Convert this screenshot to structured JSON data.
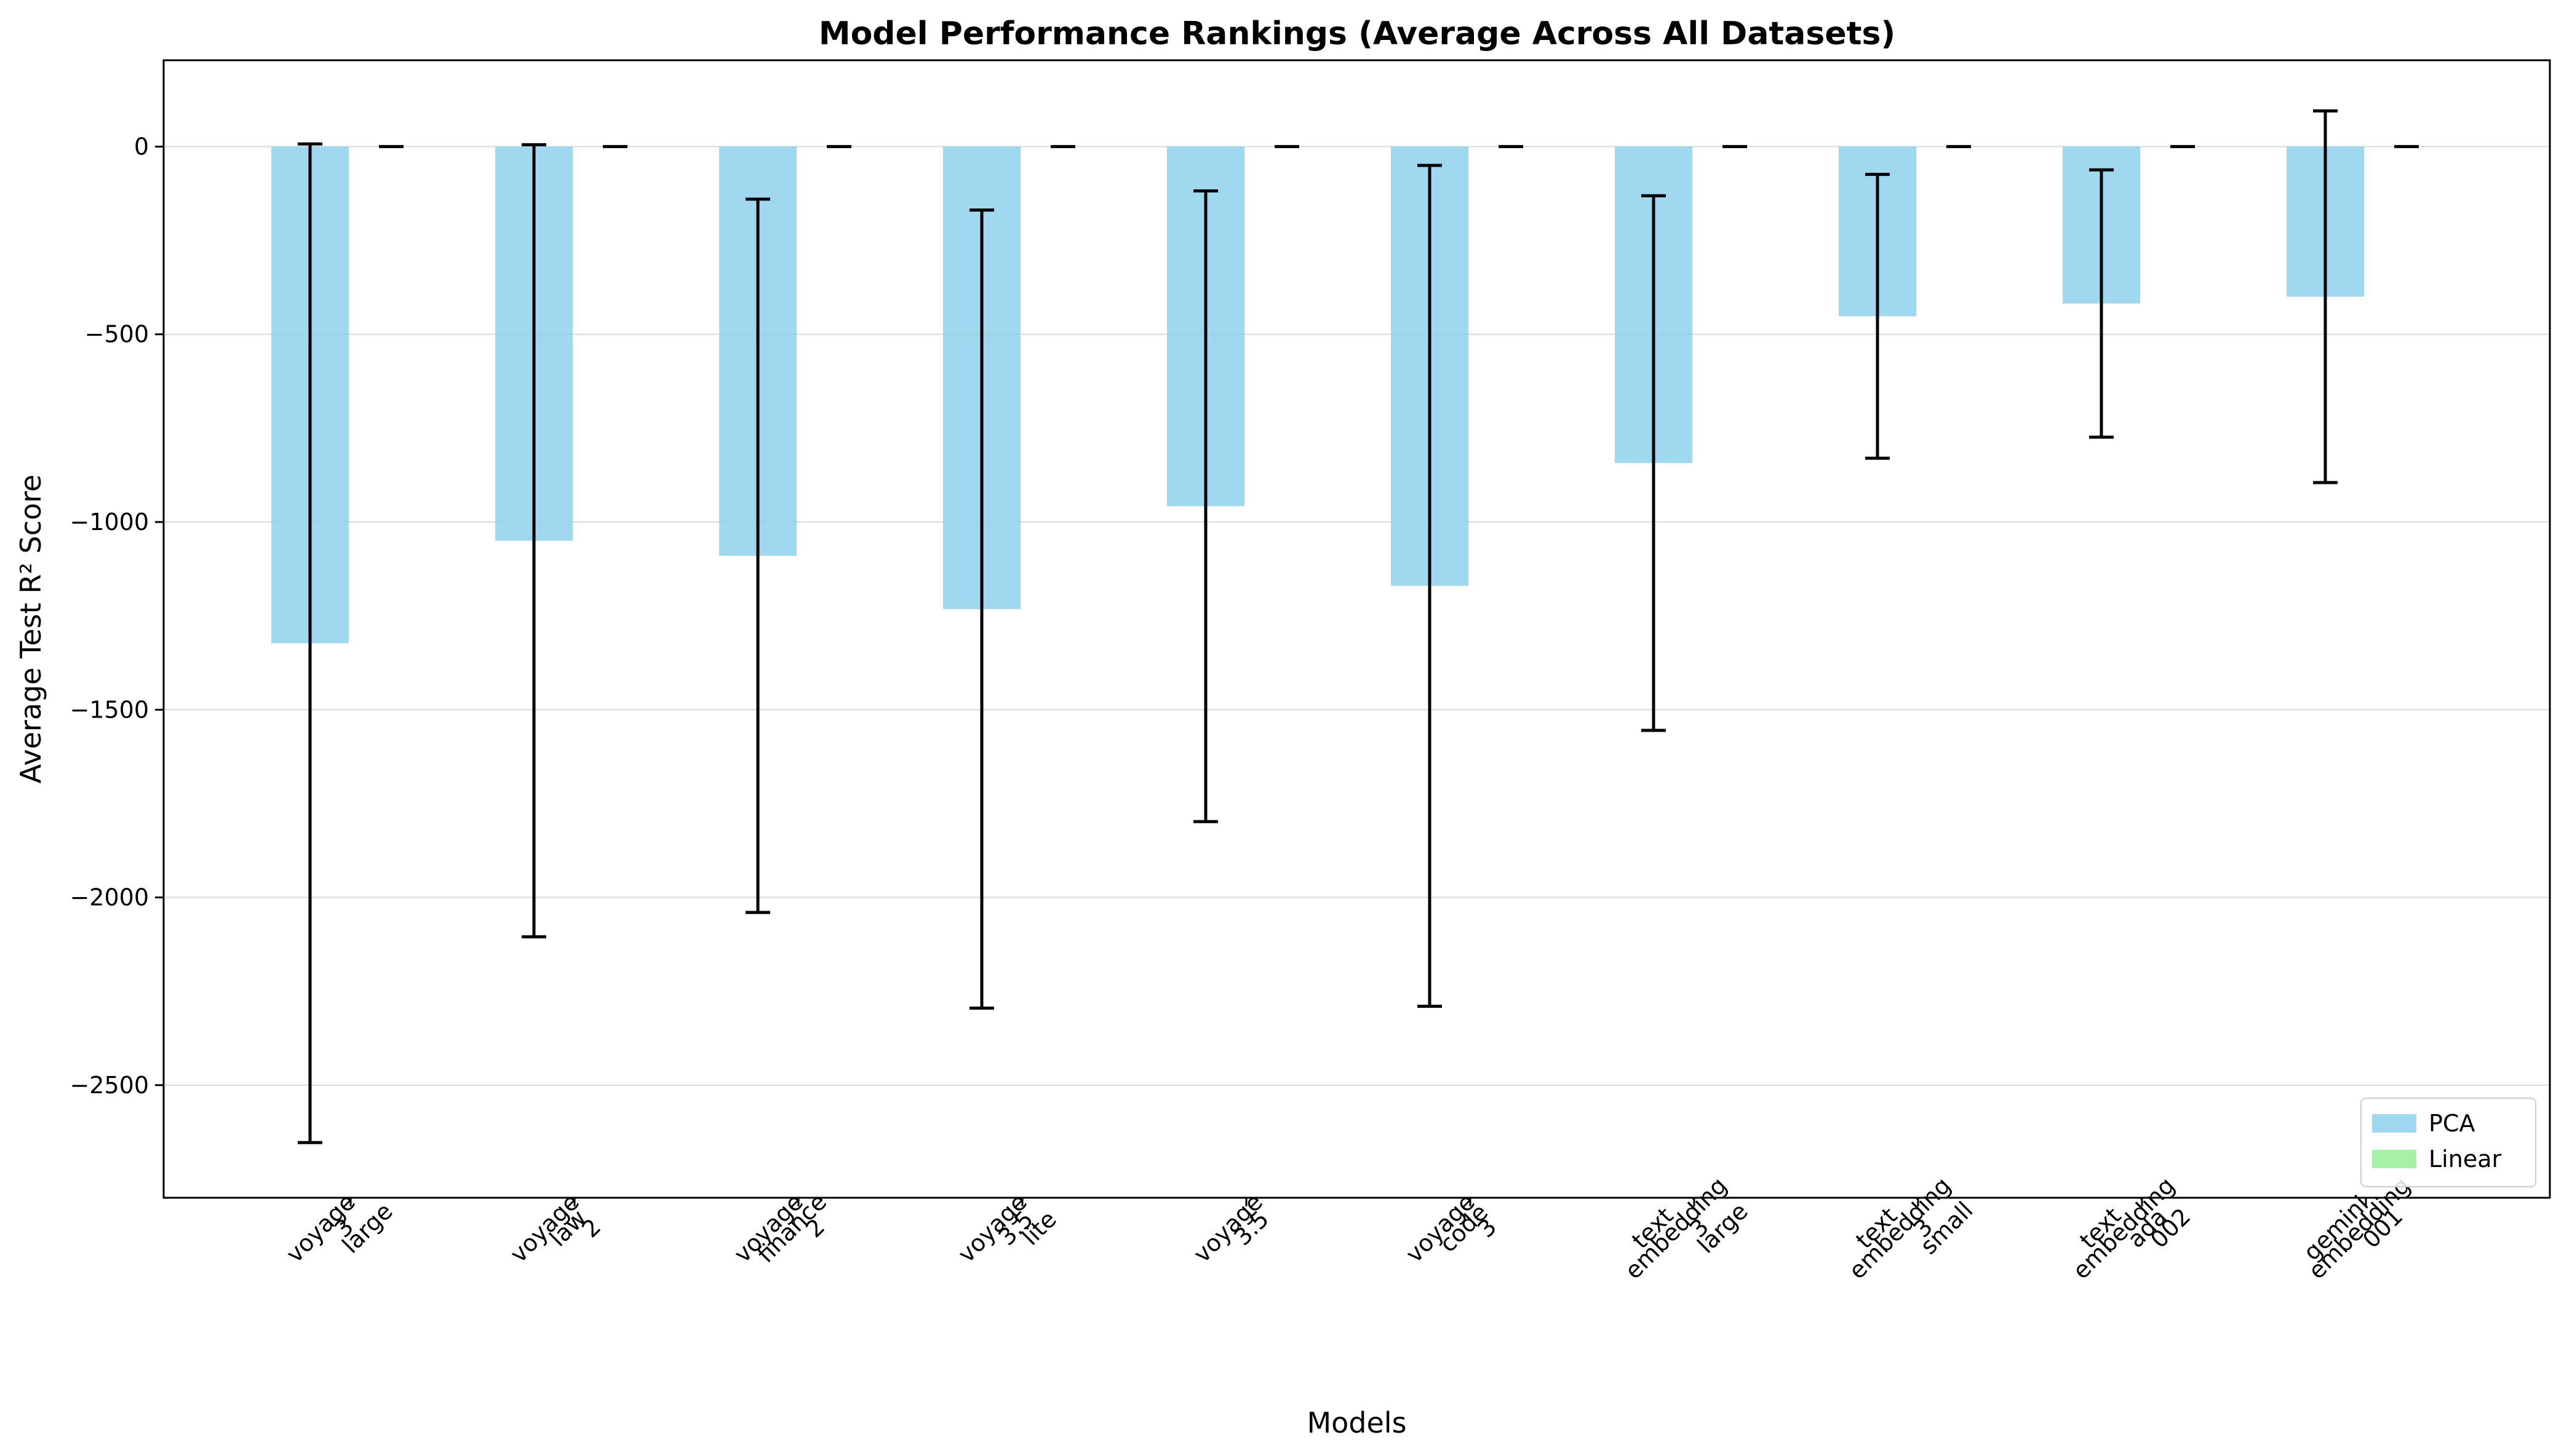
{
  "chart_data": {
    "type": "bar",
    "title": "Model Performance Rankings (Average Across All Datasets)",
    "xlabel": "Models",
    "ylabel": "Average Test R² Score",
    "categories": [
      [
        "voyage",
        "3",
        "large"
      ],
      [
        "voyage",
        "law",
        "2"
      ],
      [
        "voyage",
        "finance",
        "2"
      ],
      [
        "voyage",
        "3.5",
        "lite"
      ],
      [
        "voyage",
        "3.5"
      ],
      [
        "voyage",
        "code",
        "3"
      ],
      [
        "text",
        "embedding",
        "3",
        "large"
      ],
      [
        "text",
        "embedding",
        "3",
        "small"
      ],
      [
        "text",
        "embedding",
        "ada",
        "002"
      ],
      [
        "gemini",
        "embedding",
        "001"
      ]
    ],
    "series": [
      {
        "name": "PCA",
        "color": "#87CEEB",
        "values": [
          -1323,
          -1050,
          -1090,
          -1232,
          -958,
          -1170,
          -843,
          -452,
          -418,
          -400
        ],
        "error": [
          1330,
          1055,
          950,
          1063,
          840,
          1120,
          712,
          378,
          356,
          495
        ]
      },
      {
        "name": "Linear",
        "color": "#90EE90",
        "values": [
          0,
          0,
          0,
          0,
          0,
          0,
          0,
          0,
          0,
          0
        ],
        "error": [
          0,
          0,
          0,
          0,
          0,
          0,
          0,
          0,
          0,
          0
        ]
      }
    ],
    "ylim": [
      -2800,
      230
    ],
    "yticks": [
      0,
      -500,
      -1000,
      -1500,
      -2000,
      -2500
    ],
    "grid": "y",
    "legend_position": "lower-right"
  }
}
